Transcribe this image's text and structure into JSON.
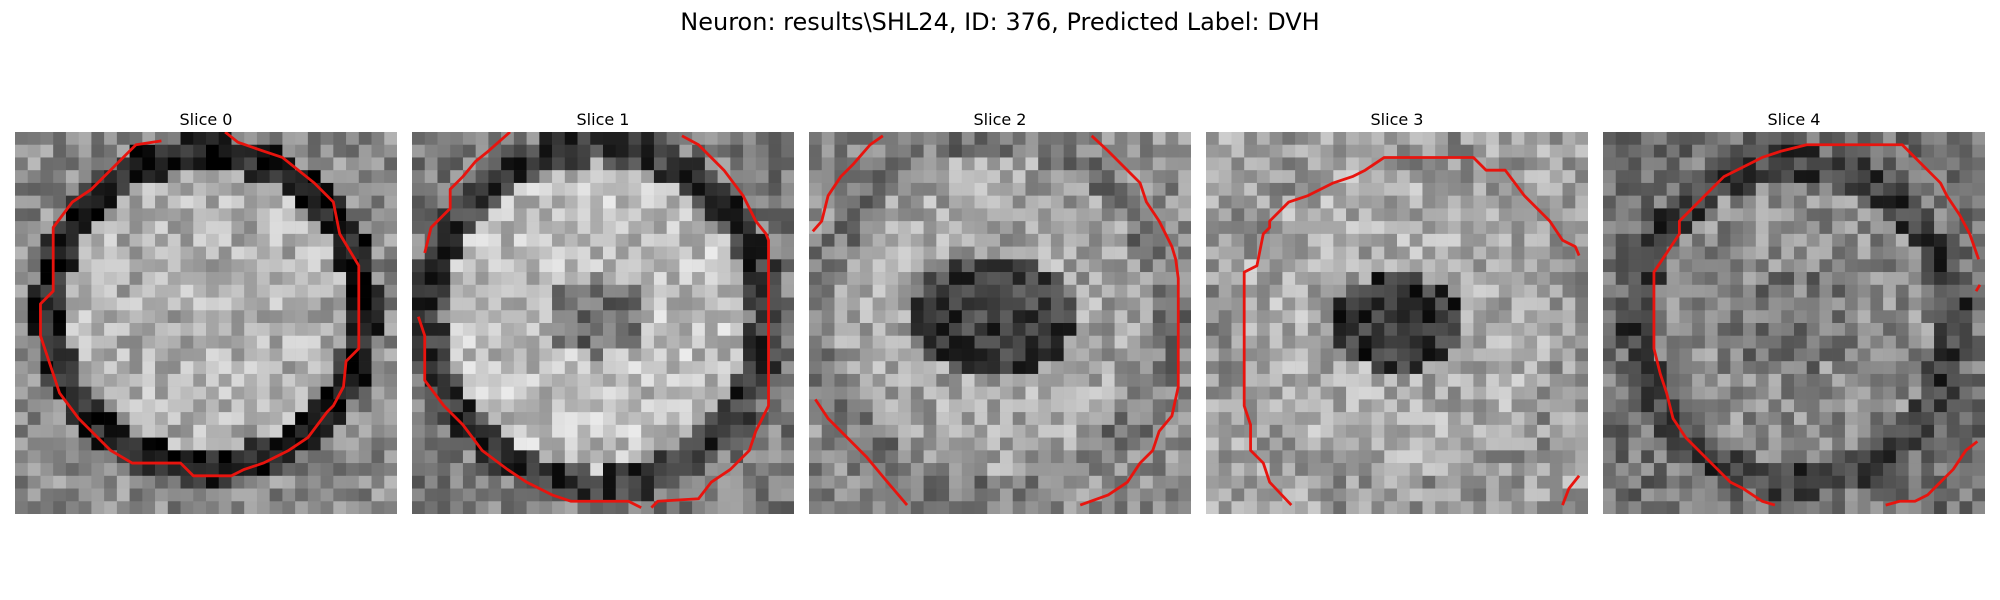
{
  "figure": {
    "title": "Neuron: results\\SHL24, ID: 376, Predicted Label: DVH"
  },
  "slices": [
    {
      "title": "Slice 0",
      "center_tone": "bright"
    },
    {
      "title": "Slice 1",
      "center_tone": "bright"
    },
    {
      "title": "Slice 2",
      "center_tone": "dark"
    },
    {
      "title": "Slice 3",
      "center_tone": "dark"
    },
    {
      "title": "Slice 4",
      "center_tone": "mid"
    }
  ],
  "colors": {
    "contour": "#e8140e",
    "background": "#ffffff"
  }
}
